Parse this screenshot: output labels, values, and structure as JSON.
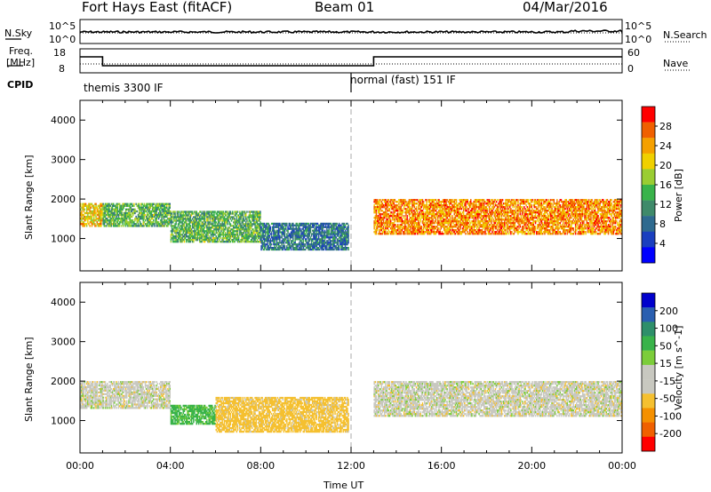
{
  "header": {
    "station": "Fort Hays East (fitACF)",
    "beam": "Beam 01",
    "date": "04/Mar/2016"
  },
  "noise_panel": {
    "left_label": "N.Sky",
    "right_label": "N.Search",
    "left_ticks": [
      "10^5",
      "10^0"
    ],
    "right_ticks": [
      "10^5",
      "10^0"
    ]
  },
  "freq_panel": {
    "left_label_1": "Freq.",
    "left_label_2": "[MHz]",
    "right_label": "Nave",
    "left_ticks": [
      "18",
      "8"
    ],
    "right_ticks": [
      "60",
      "0"
    ],
    "cpid_label": "CPID",
    "modes": [
      "themis 3300 IF",
      "normal (fast) 151 IF"
    ]
  },
  "colors": {
    "power": [
      "#0000ff",
      "#1a3fbf",
      "#2e6a8f",
      "#3f8a6a",
      "#39b34a",
      "#9acd32",
      "#f0d000",
      "#f5a000",
      "#f06000",
      "#ff0000"
    ],
    "velocity": [
      "#0000cc",
      "#2a5fb0",
      "#2e8f6a",
      "#39b34a",
      "#7ccd3a",
      "#c8c8c0",
      "#c8c8c0",
      "#f5c030",
      "#f59000",
      "#f06000",
      "#ff0000"
    ]
  },
  "chart_data": [
    {
      "type": "heatmap",
      "title": "Power",
      "ylabel": "Slant Range [km]",
      "y_ticks": [
        "1000",
        "2000",
        "3000",
        "4000"
      ],
      "ylim": [
        180,
        4500
      ],
      "colorbar_label": "Power [dB]",
      "colorbar_ticks": [
        "4",
        "8",
        "12",
        "16",
        "20",
        "24",
        "28"
      ],
      "colorbar_range": [
        0,
        32
      ],
      "regions": [
        {
          "t0": 0.0,
          "t1": 1.0,
          "r0": 1300,
          "r1": 1900,
          "level": 22
        },
        {
          "t0": 1.0,
          "t1": 4.0,
          "r0": 1300,
          "r1": 1900,
          "level": 14
        },
        {
          "t0": 4.0,
          "t1": 8.0,
          "r0": 900,
          "r1": 1700,
          "level": 14
        },
        {
          "t0": 8.0,
          "t1": 11.9,
          "r0": 700,
          "r1": 1400,
          "level": 8
        },
        {
          "t0": 13.0,
          "t1": 24.0,
          "r0": 1100,
          "r1": 2000,
          "level": 26
        }
      ]
    },
    {
      "type": "heatmap",
      "title": "Velocity",
      "ylabel": "Slant Range [km]",
      "y_ticks": [
        "1000",
        "2000",
        "3000",
        "4000"
      ],
      "ylim": [
        180,
        4500
      ],
      "xlabel": "Time UT",
      "x_ticks": [
        "00:00",
        "04:00",
        "08:00",
        "12:00",
        "16:00",
        "20:00",
        "00:00"
      ],
      "xlim": [
        0,
        24
      ],
      "colorbar_label": "Velocity [m s^-1]",
      "colorbar_ticks": [
        "200",
        "100",
        "50",
        "15",
        "-15",
        "-50",
        "-100",
        "-200"
      ],
      "regions": [
        {
          "t0": 0.0,
          "t1": 4.0,
          "r0": 1300,
          "r1": 2000,
          "level": 0
        },
        {
          "t0": 4.0,
          "t1": 6.0,
          "r0": 900,
          "r1": 1400,
          "level": 40
        },
        {
          "t0": 6.0,
          "t1": 11.9,
          "r0": 700,
          "r1": 1600,
          "level": -30
        },
        {
          "t0": 13.0,
          "t1": 24.0,
          "r0": 1100,
          "r1": 2000,
          "level": 0
        }
      ]
    }
  ]
}
